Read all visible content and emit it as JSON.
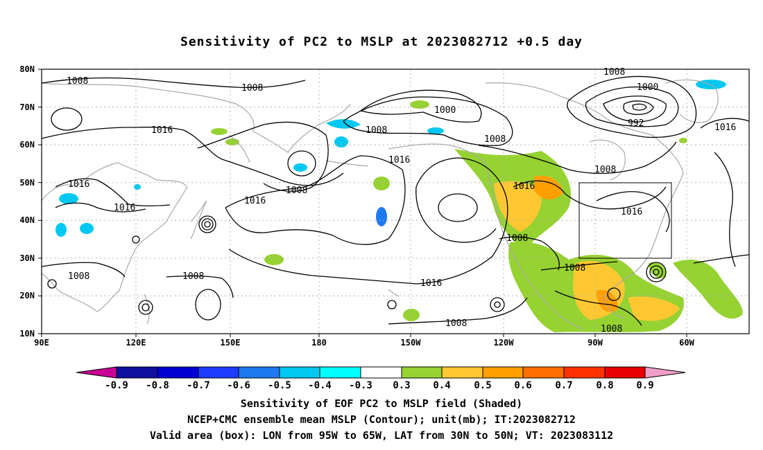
{
  "title": "Sensitivity of PC2 to MSLP at 2023082712 +0.5 day",
  "map": {
    "lat_labels": [
      "80N",
      "70N",
      "60N",
      "50N",
      "40N",
      "30N",
      "20N",
      "10N"
    ],
    "lon_labels": [
      "90E",
      "120E",
      "150E",
      "180",
      "150W",
      "120W",
      "90W",
      "60W"
    ],
    "isobar_labels": [
      {
        "text": "1008"
      },
      {
        "text": "1008"
      },
      {
        "text": "1016"
      },
      {
        "text": "1016"
      },
      {
        "text": "1016"
      },
      {
        "text": "1008"
      },
      {
        "text": "1008"
      },
      {
        "text": "1000"
      },
      {
        "text": "1008"
      },
      {
        "text": "1008"
      },
      {
        "text": "1016"
      },
      {
        "text": "1008"
      },
      {
        "text": "1016"
      },
      {
        "text": "1016"
      },
      {
        "text": "1008"
      },
      {
        "text": "1000"
      },
      {
        "text": "992"
      },
      {
        "text": "1016"
      },
      {
        "text": "1008"
      },
      {
        "text": "1016"
      },
      {
        "text": "1016"
      },
      {
        "text": "1008"
      },
      {
        "text": "1008"
      },
      {
        "text": "1008"
      },
      {
        "text": "1008"
      }
    ],
    "valid_box": {
      "lon_range": [
        "95W",
        "65W"
      ],
      "lat_range": [
        "30N",
        "50N"
      ]
    }
  },
  "colorbar": {
    "labels": [
      "-0.9",
      "-0.8",
      "-0.7",
      "-0.6",
      "-0.5",
      "-0.4",
      "-0.3",
      "0.3",
      "0.4",
      "0.5",
      "0.6",
      "0.7",
      "0.8",
      "0.9"
    ],
    "colors": [
      "#c80096",
      "#0f0fa0",
      "#0000d2",
      "#1e3cff",
      "#1e78f0",
      "#00c8f0",
      "#00ffff",
      "#ffffff",
      "#96d232",
      "#ffc832",
      "#ffa000",
      "#ff6e00",
      "#ff3200",
      "#e60000",
      "#f0a0c8"
    ]
  },
  "captions": {
    "line1": "Sensitivity of EOF PC2 to MSLP field (Shaded)",
    "line2": "NCEP+CMC ensemble mean MSLP (Contour); unit(mb); IT:2023082712",
    "line3": "Valid area (box): LON from 95W to 65W, LAT from 30N to 50N; VT: 2023083112"
  }
}
